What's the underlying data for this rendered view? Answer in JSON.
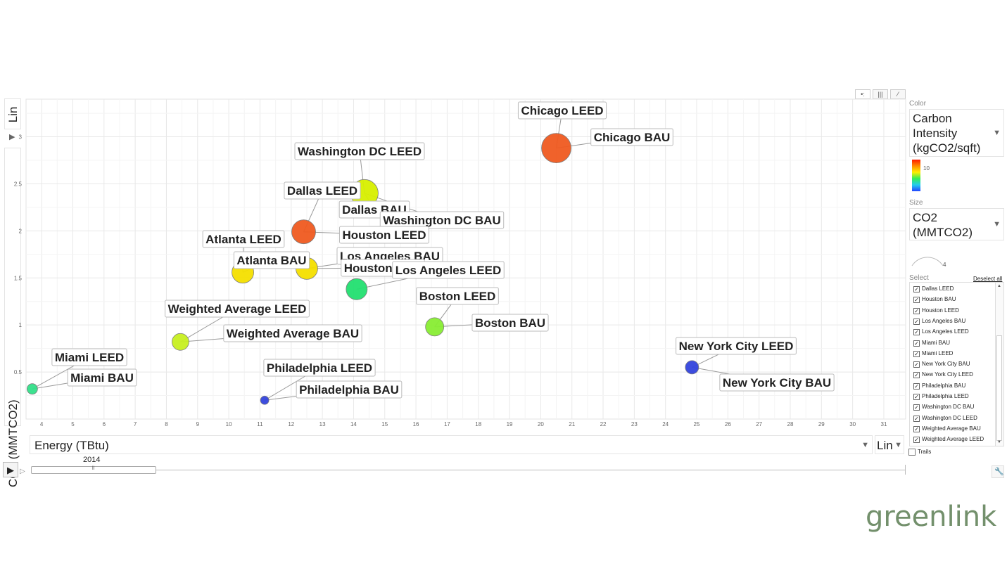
{
  "chart_data": {
    "type": "scatter",
    "xlabel": "Energy (TBtu)",
    "ylabel": "CO2 (MMTCO2)",
    "xlim": [
      3.5,
      31.7
    ],
    "ylim": [
      0,
      3.4
    ],
    "x_ticks": [
      4,
      5,
      6,
      7,
      8,
      9,
      10,
      11,
      12,
      13,
      14,
      15,
      16,
      17,
      18,
      19,
      20,
      21,
      22,
      23,
      24,
      25,
      26,
      27,
      28,
      29,
      30,
      31
    ],
    "y_ticks": [
      0.5,
      1,
      1.5,
      2,
      2.5,
      3
    ],
    "x_scale": "Lin",
    "y_scale": "Lin",
    "grid": true,
    "year": "2014",
    "points": [
      {
        "label": "Chicago BAU",
        "x": 20.5,
        "y": 2.88,
        "color": "#f05a20"
      },
      {
        "label": "Washington DC LEED",
        "x": 14.35,
        "y": 2.4,
        "color": "#d8f000"
      },
      {
        "label": "Houston LEED",
        "x": 12.4,
        "y": 1.99,
        "color": "#f05a20"
      },
      {
        "label": "Atlanta BAU",
        "x": 10.45,
        "y": 1.56,
        "color": "#f5e000"
      },
      {
        "label": "Houston BAU",
        "x": 12.5,
        "y": 1.6,
        "color": "#f5e000"
      },
      {
        "label": "Los Angeles LEED",
        "x": 14.1,
        "y": 1.38,
        "color": "#22e070"
      },
      {
        "label": "Boston BAU",
        "x": 16.6,
        "y": 0.98,
        "color": "#88ee33"
      },
      {
        "label": "Weighted Average BAU",
        "x": 8.45,
        "y": 0.82,
        "color": "#c8f020"
      },
      {
        "label": "Miami BAU",
        "x": 3.7,
        "y": 0.32,
        "color": "#33e08a"
      },
      {
        "label": "Philadelphia BAU",
        "x": 11.15,
        "y": 0.2,
        "color": "#3344dd"
      },
      {
        "label": "New York City BAU",
        "x": 24.85,
        "y": 0.55,
        "color": "#3344dd"
      }
    ],
    "labels": [
      {
        "text": "Chicago LEED",
        "x": 20.5,
        "y": 2.88
      },
      {
        "text": "Chicago BAU",
        "x": 20.5,
        "y": 2.88
      },
      {
        "text": "Washington DC LEED",
        "x": 14.35,
        "y": 2.4
      },
      {
        "text": "Dallas LEED",
        "x": 12.4,
        "y": 1.99
      },
      {
        "text": "Dallas BAU",
        "x": 14.35,
        "y": 2.4
      },
      {
        "text": "Washington DC BAU",
        "x": 14.35,
        "y": 2.4
      },
      {
        "text": "Houston LEED",
        "x": 12.4,
        "y": 1.99
      },
      {
        "text": "Atlanta LEED",
        "x": 10.45,
        "y": 1.56
      },
      {
        "text": "Atlanta BAU",
        "x": 10.45,
        "y": 1.56
      },
      {
        "text": "Los Angeles BAU",
        "x": 12.5,
        "y": 1.6
      },
      {
        "text": "Houston BAU",
        "x": 12.5,
        "y": 1.6
      },
      {
        "text": "Los Angeles LEED",
        "x": 14.1,
        "y": 1.38
      },
      {
        "text": "Boston LEED",
        "x": 16.6,
        "y": 0.98
      },
      {
        "text": "Boston BAU",
        "x": 16.6,
        "y": 0.98
      },
      {
        "text": "Weighted Average LEED",
        "x": 8.45,
        "y": 0.82
      },
      {
        "text": "Weighted Average BAU",
        "x": 8.45,
        "y": 0.82
      },
      {
        "text": "Miami LEED",
        "x": 3.7,
        "y": 0.32
      },
      {
        "text": "Miami BAU",
        "x": 3.7,
        "y": 0.32
      },
      {
        "text": "Philadelphia LEED",
        "x": 11.15,
        "y": 0.2
      },
      {
        "text": "Philadelphia BAU",
        "x": 11.15,
        "y": 0.2
      },
      {
        "text": "New York City LEED",
        "x": 24.85,
        "y": 0.55
      },
      {
        "text": "New York City BAU",
        "x": 24.85,
        "y": 0.55
      }
    ]
  },
  "controls": {
    "y_scale_label": "Lin",
    "x_axis_label": "Energy (TBtu)",
    "x_scale_label": "Lin",
    "year_label": "2014",
    "color_heading": "Color",
    "color_value": "Carbon Intensity (kgCO2/sqft)",
    "color_legend_tick": "10",
    "size_heading": "Size",
    "size_value": "CO2 (MMTCO2)",
    "size_legend_tick": "4",
    "select_heading": "Select",
    "deselect_all": "Deselect all",
    "trails_label": "Trails",
    "play_icon": "play-icon",
    "step_icon": "step-icon",
    "settings_icon": "wrench-icon",
    "select_items": [
      "Dallas LEED",
      "Houston BAU",
      "Houston LEED",
      "Los Angeles BAU",
      "Los Angeles LEED",
      "Miami BAU",
      "Miami LEED",
      "New York City BAU",
      "New York City LEED",
      "Philadelphia BAU",
      "Philadelphia LEED",
      "Washington DC BAU",
      "Washington DC LEED",
      "Weighted Average BAU",
      "Weighted Average LEED"
    ]
  },
  "brand": {
    "logo_text": "greenlink",
    "logo_color": "#73906c"
  }
}
